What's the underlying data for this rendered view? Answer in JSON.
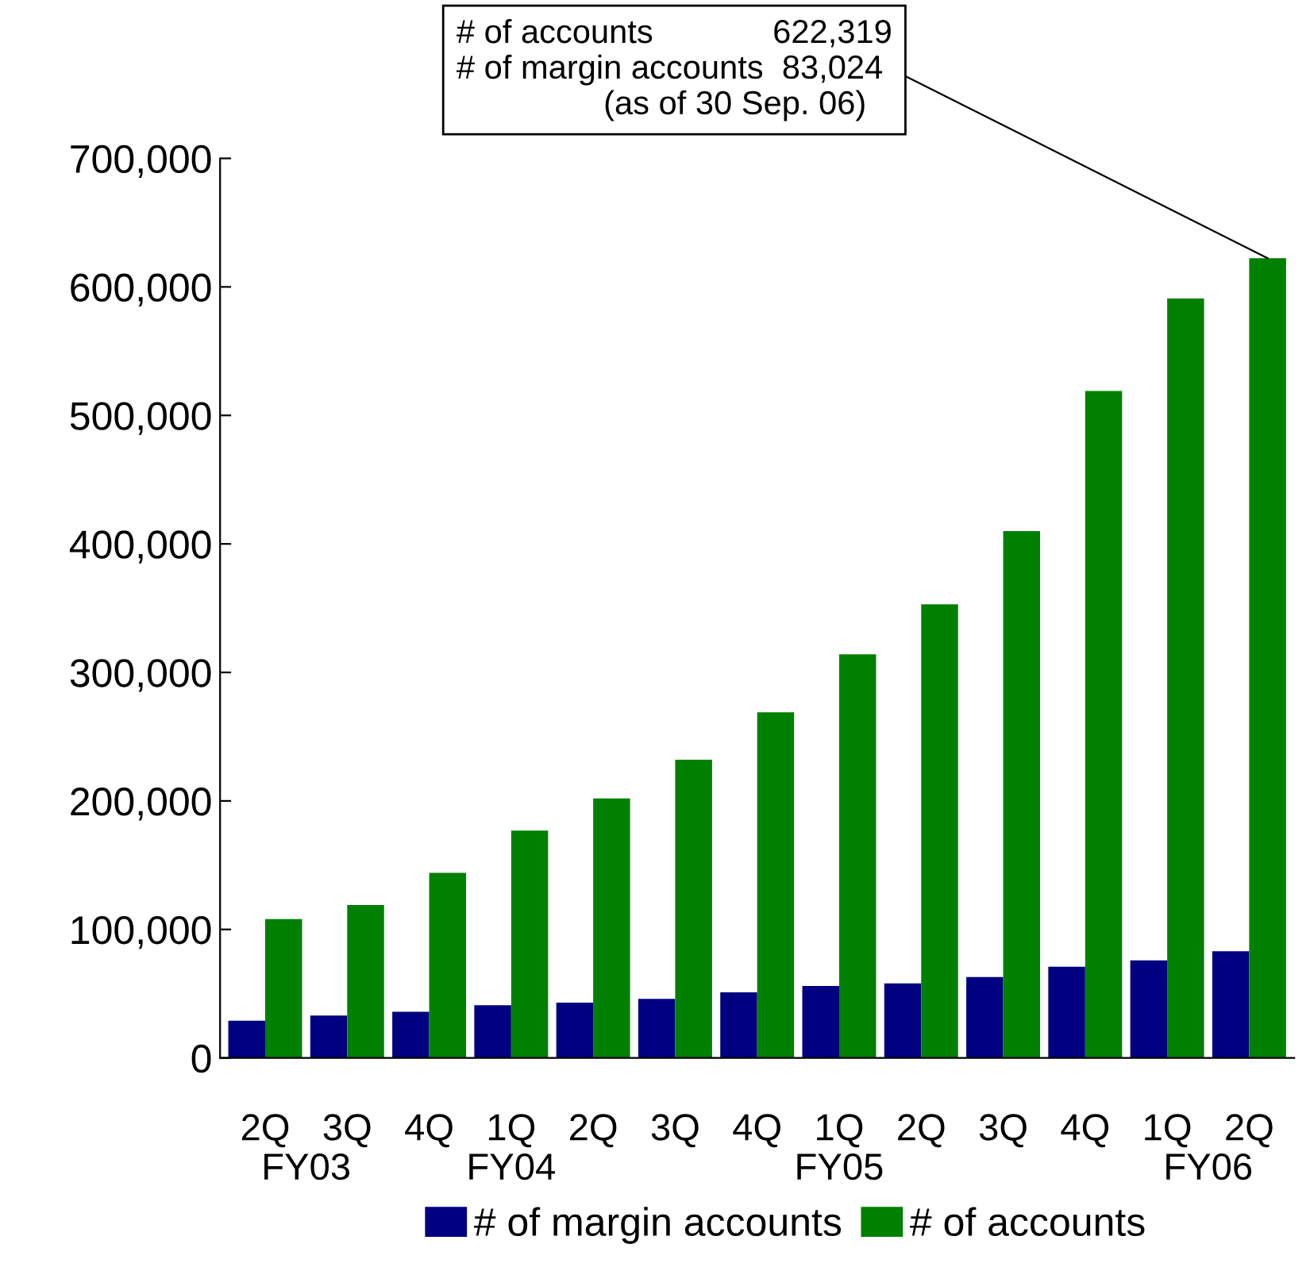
{
  "chart_data": {
    "type": "bar",
    "categories": [
      "2Q",
      "3Q",
      "4Q",
      "1Q",
      "2Q",
      "3Q",
      "4Q",
      "1Q",
      "2Q",
      "3Q",
      "4Q",
      "1Q",
      "2Q"
    ],
    "series": [
      {
        "name": "# of margin accounts",
        "color": "#000080",
        "values": [
          29000,
          33000,
          36000,
          41000,
          43000,
          46000,
          51000,
          56000,
          58000,
          63000,
          71000,
          76000,
          83024
        ]
      },
      {
        "name": "# of accounts",
        "color": "#008000",
        "values": [
          108000,
          119000,
          144000,
          177000,
          202000,
          232000,
          269000,
          314000,
          353000,
          410000,
          519000,
          591000,
          622319
        ]
      }
    ],
    "ylim": [
      0,
      700000
    ],
    "yticks": [
      {
        "value": 0,
        "label": "0"
      },
      {
        "value": 100000,
        "label": "100,000"
      },
      {
        "value": 200000,
        "label": "200,000"
      },
      {
        "value": 300000,
        "label": "300,000"
      },
      {
        "value": 400000,
        "label": "400,000"
      },
      {
        "value": 500000,
        "label": "500,000"
      },
      {
        "value": 600000,
        "label": "600,000"
      },
      {
        "value": 700000,
        "label": "700,000"
      }
    ],
    "grid": false,
    "legend": "bottom",
    "annotations": [
      "FY03",
      "FY04",
      "FY05",
      "FY06",
      "# of accounts             622,319\n# of margin accounts  83,024\n                (as of 30 Sep. 06)"
    ]
  }
}
